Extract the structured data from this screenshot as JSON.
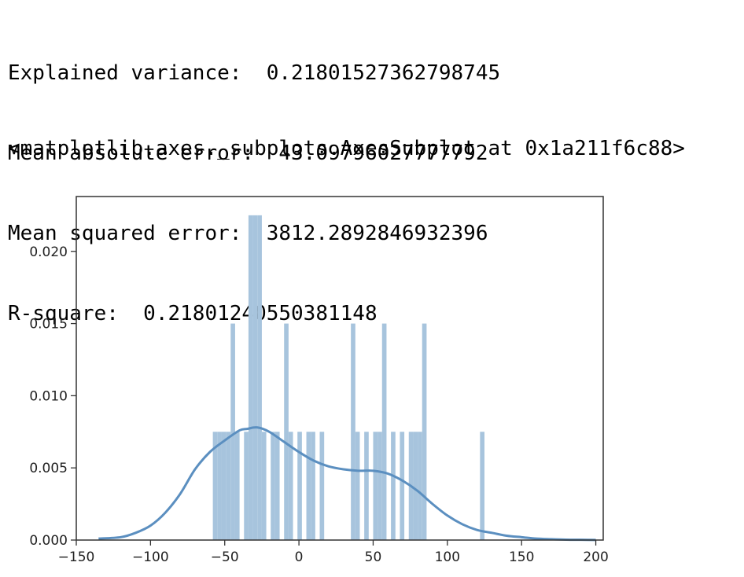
{
  "output": {
    "lines": [
      "Explained variance:  0.21801527362798745",
      "Mean absolute error:  43.09796027777792",
      "Mean squared error:  3812.2892846932396",
      "R-square:  0.21801240550381148"
    ],
    "repr": "<matplotlib.axes._subplots.AxesSubplot at 0x1a211f6c88>"
  },
  "chart_data": {
    "type": "bar",
    "title": "",
    "xlabel": "",
    "ylabel": "",
    "xlim": [
      -150,
      205
    ],
    "ylim": [
      0,
      0.0238
    ],
    "xticks": [
      -150,
      -100,
      -50,
      0,
      50,
      100,
      150,
      200
    ],
    "xtick_labels": [
      "−150",
      "−100",
      "−50",
      "0",
      "50",
      "100",
      "150",
      "200"
    ],
    "yticks": [
      0,
      0.005,
      0.01,
      0.015,
      0.02
    ],
    "ytick_labels": [
      "0.000",
      "0.005",
      "0.010",
      "0.015",
      "0.020"
    ],
    "grid": false,
    "colors": {
      "bars": "#a7c4dd",
      "kde": "#5b8fc0"
    },
    "bin_width": 3,
    "bins": [
      {
        "x0": -58,
        "x1": -55,
        "value": 0.0075
      },
      {
        "x0": -55,
        "x1": -52,
        "value": 0.0075
      },
      {
        "x0": -52,
        "x1": -49,
        "value": 0.0075
      },
      {
        "x0": -49,
        "x1": -46,
        "value": 0.0075
      },
      {
        "x0": -46,
        "x1": -43,
        "value": 0.015
      },
      {
        "x0": -43,
        "x1": -40,
        "value": 0.0075
      },
      {
        "x0": -37,
        "x1": -34,
        "value": 0.0075
      },
      {
        "x0": -34,
        "x1": -31,
        "value": 0.0225
      },
      {
        "x0": -31,
        "x1": -28,
        "value": 0.0225
      },
      {
        "x0": -28,
        "x1": -25,
        "value": 0.0225
      },
      {
        "x0": -25,
        "x1": -22,
        "value": 0.0075
      },
      {
        "x0": -19,
        "x1": -16,
        "value": 0.0075
      },
      {
        "x0": -16,
        "x1": -13,
        "value": 0.0075
      },
      {
        "x0": -10,
        "x1": -7,
        "value": 0.015
      },
      {
        "x0": -7,
        "x1": -4,
        "value": 0.0075
      },
      {
        "x0": -1,
        "x1": 2,
        "value": 0.0075
      },
      {
        "x0": 5,
        "x1": 8,
        "value": 0.0075
      },
      {
        "x0": 8,
        "x1": 11,
        "value": 0.0075
      },
      {
        "x0": 14,
        "x1": 17,
        "value": 0.0075
      },
      {
        "x0": 35,
        "x1": 38,
        "value": 0.015
      },
      {
        "x0": 38,
        "x1": 41,
        "value": 0.0075
      },
      {
        "x0": 44,
        "x1": 47,
        "value": 0.0075
      },
      {
        "x0": 50,
        "x1": 53,
        "value": 0.0075
      },
      {
        "x0": 53,
        "x1": 56,
        "value": 0.0075
      },
      {
        "x0": 56,
        "x1": 59,
        "value": 0.015
      },
      {
        "x0": 62,
        "x1": 65,
        "value": 0.0075
      },
      {
        "x0": 68,
        "x1": 71,
        "value": 0.0075
      },
      {
        "x0": 74,
        "x1": 77,
        "value": 0.0075
      },
      {
        "x0": 77,
        "x1": 80,
        "value": 0.0075
      },
      {
        "x0": 80,
        "x1": 83,
        "value": 0.0075
      },
      {
        "x0": 83,
        "x1": 86,
        "value": 0.015
      },
      {
        "x0": 122,
        "x1": 125,
        "value": 0.0075
      }
    ],
    "kde": {
      "x": [
        -135,
        -120,
        -110,
        -100,
        -90,
        -80,
        -70,
        -60,
        -50,
        -40,
        -35,
        -28,
        -20,
        -10,
        0,
        10,
        20,
        30,
        40,
        50,
        60,
        70,
        80,
        90,
        100,
        110,
        120,
        130,
        140,
        150,
        160,
        170,
        180,
        190,
        200
      ],
      "y": [
        0.0001,
        0.0002,
        0.0005,
        0.001,
        0.0019,
        0.0032,
        0.0049,
        0.0061,
        0.0069,
        0.0076,
        0.0077,
        0.0078,
        0.0075,
        0.0068,
        0.0061,
        0.0055,
        0.0051,
        0.0049,
        0.0048,
        0.0048,
        0.0046,
        0.0041,
        0.0034,
        0.0025,
        0.0017,
        0.0011,
        0.0007,
        0.0005,
        0.0003,
        0.0002,
        0.0001,
        6e-05,
        3e-05,
        2e-05,
        1e-05
      ]
    }
  }
}
